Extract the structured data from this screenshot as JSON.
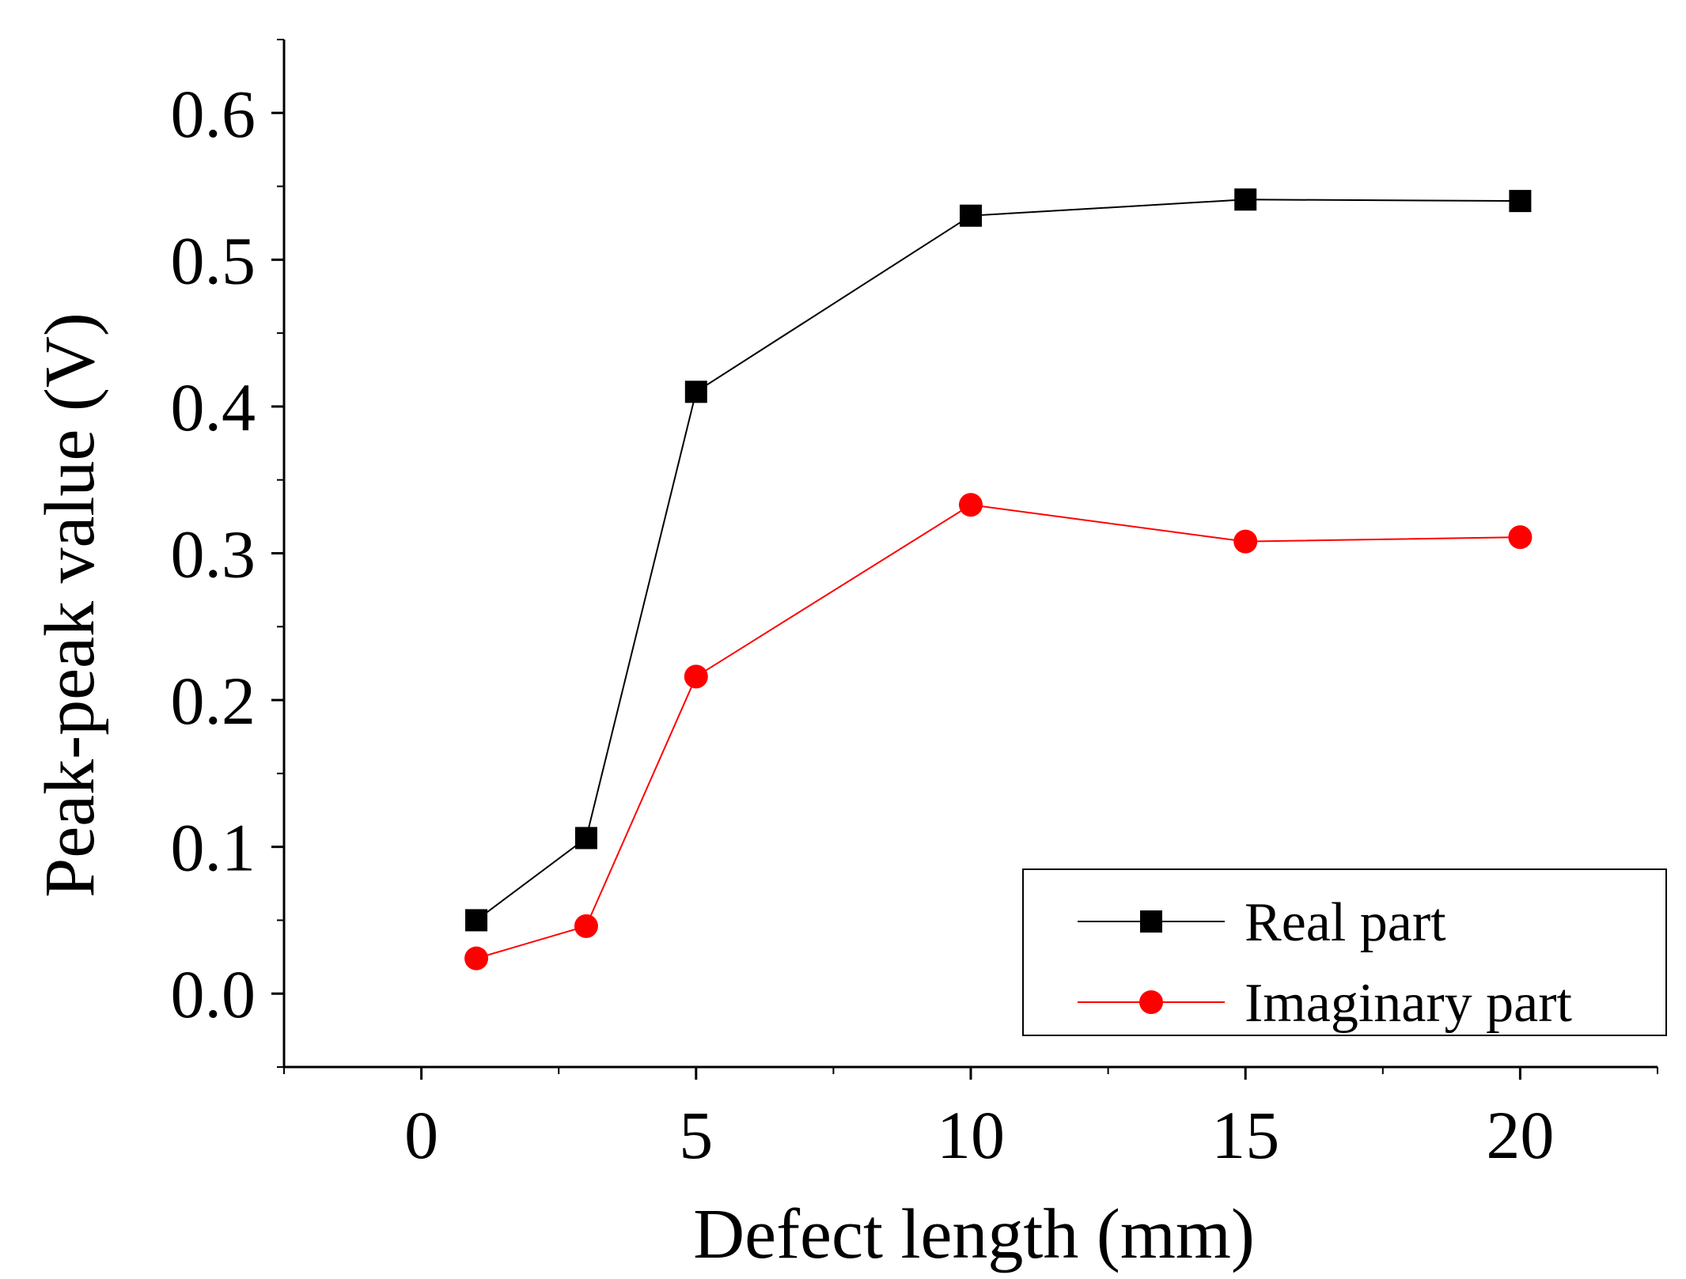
{
  "chart_data": {
    "type": "line",
    "title": "",
    "xlabel": "Defect length (mm)",
    "ylabel": "Peak-peak value (V)",
    "x_ticks": [
      "0",
      "5",
      "10",
      "15",
      "20"
    ],
    "y_ticks": [
      "0.0",
      "0.1",
      "0.2",
      "0.3",
      "0.4",
      "0.5",
      "0.6"
    ],
    "x_tick_values": [
      0,
      5,
      10,
      15,
      20
    ],
    "y_tick_values": [
      0.0,
      0.1,
      0.2,
      0.3,
      0.4,
      0.5,
      0.6
    ],
    "xlim": [
      -2.5,
      22.5
    ],
    "ylim": [
      -0.05,
      0.65
    ],
    "x": [
      1,
      3,
      5,
      10,
      15,
      20
    ],
    "series": [
      {
        "name": "Real part",
        "values": [
          0.05,
          0.106,
          0.41,
          0.53,
          0.541,
          0.54
        ],
        "color": "#000000",
        "marker": "square"
      },
      {
        "name": "Imaginary part",
        "values": [
          0.024,
          0.046,
          0.216,
          0.333,
          0.308,
          0.311
        ],
        "color": "#ff0000",
        "marker": "circle"
      }
    ],
    "legend_position": "bottom-right",
    "grid": false
  }
}
